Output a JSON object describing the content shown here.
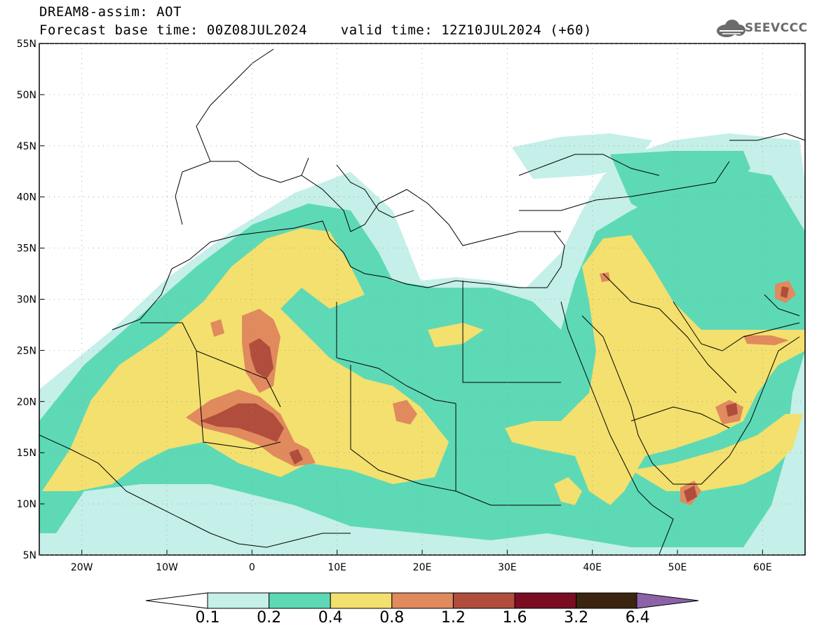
{
  "header": {
    "title_line1": "DREAM8-assim: AOT",
    "title_line2": "Forecast base time: 00Z08JUL2024    valid time: 12Z10JUL2024 (+60)",
    "logo_text": "SEEVCCC"
  },
  "map": {
    "lat_labels": [
      "55N",
      "50N",
      "45N",
      "40N",
      "35N",
      "30N",
      "25N",
      "20N",
      "15N",
      "10N",
      "5N"
    ],
    "lon_labels": [
      "20W",
      "10W",
      "0",
      "10E",
      "20E",
      "30E",
      "40E",
      "50E",
      "60E"
    ],
    "extent": {
      "lon_min": -25,
      "lon_max": 65,
      "lat_min": 5,
      "lat_max": 55
    },
    "variable": "AOT"
  },
  "colorbar": {
    "labels": [
      "0.1",
      "0.2",
      "0.4",
      "0.8",
      "1.2",
      "1.6",
      "3.2",
      "6.4"
    ],
    "colors": [
      "#c5efe9",
      "#5ed9b5",
      "#f3e06e",
      "#e08a5e",
      "#b14d3c",
      "#7a0d24",
      "#3b2410",
      "#8d63a8"
    ]
  }
}
